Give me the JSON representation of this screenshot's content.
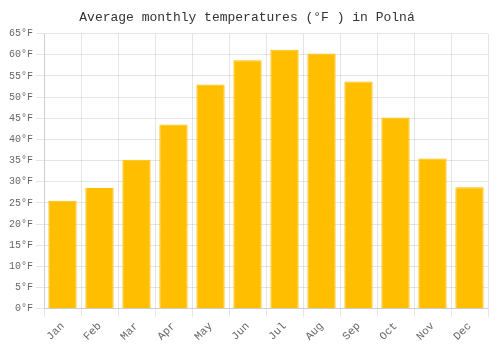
{
  "chart_data": {
    "type": "bar",
    "title": "Average monthly temperatures (°F ) in Polná",
    "categories": [
      "Jan",
      "Feb",
      "Mar",
      "Apr",
      "May",
      "Jun",
      "Jul",
      "Aug",
      "Sep",
      "Oct",
      "Nov",
      "Dec"
    ],
    "values": [
      25.5,
      28.5,
      35.2,
      43.5,
      53.0,
      58.7,
      61.2,
      60.3,
      53.7,
      45.2,
      35.5,
      28.7
    ],
    "color": "#FFBE00",
    "ylim": [
      0,
      65
    ],
    "yticks": [
      {
        "value": 0,
        "label": "0°F"
      },
      {
        "value": 5,
        "label": "5°F"
      },
      {
        "value": 10,
        "label": "10°F"
      },
      {
        "value": 15,
        "label": "15°F"
      },
      {
        "value": 20,
        "label": "20°F"
      },
      {
        "value": 25,
        "label": "25°F"
      },
      {
        "value": 30,
        "label": "30°F"
      },
      {
        "value": 35,
        "label": "35°F"
      },
      {
        "value": 40,
        "label": "40°F"
      },
      {
        "value": 45,
        "label": "45°F"
      },
      {
        "value": 50,
        "label": "50°F"
      },
      {
        "value": 55,
        "label": "55°F"
      },
      {
        "value": 60,
        "label": "60°F"
      },
      {
        "value": 65,
        "label": "65°F"
      }
    ],
    "grid": true
  }
}
